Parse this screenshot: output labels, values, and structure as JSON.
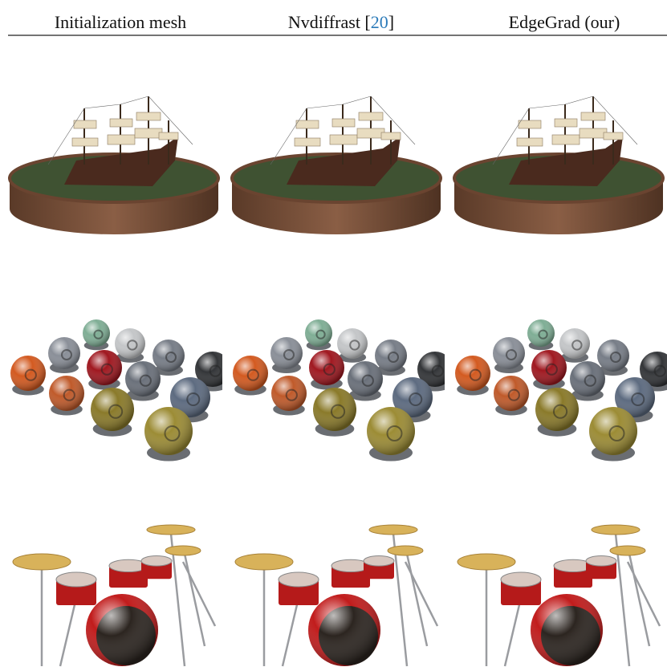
{
  "header": {
    "columns": [
      {
        "text": "Initialization mesh"
      },
      {
        "prefix": "Nvdiffrast [",
        "ref": "20",
        "suffix": "]"
      },
      {
        "text": "EdgeGrad (our)"
      }
    ]
  }
}
